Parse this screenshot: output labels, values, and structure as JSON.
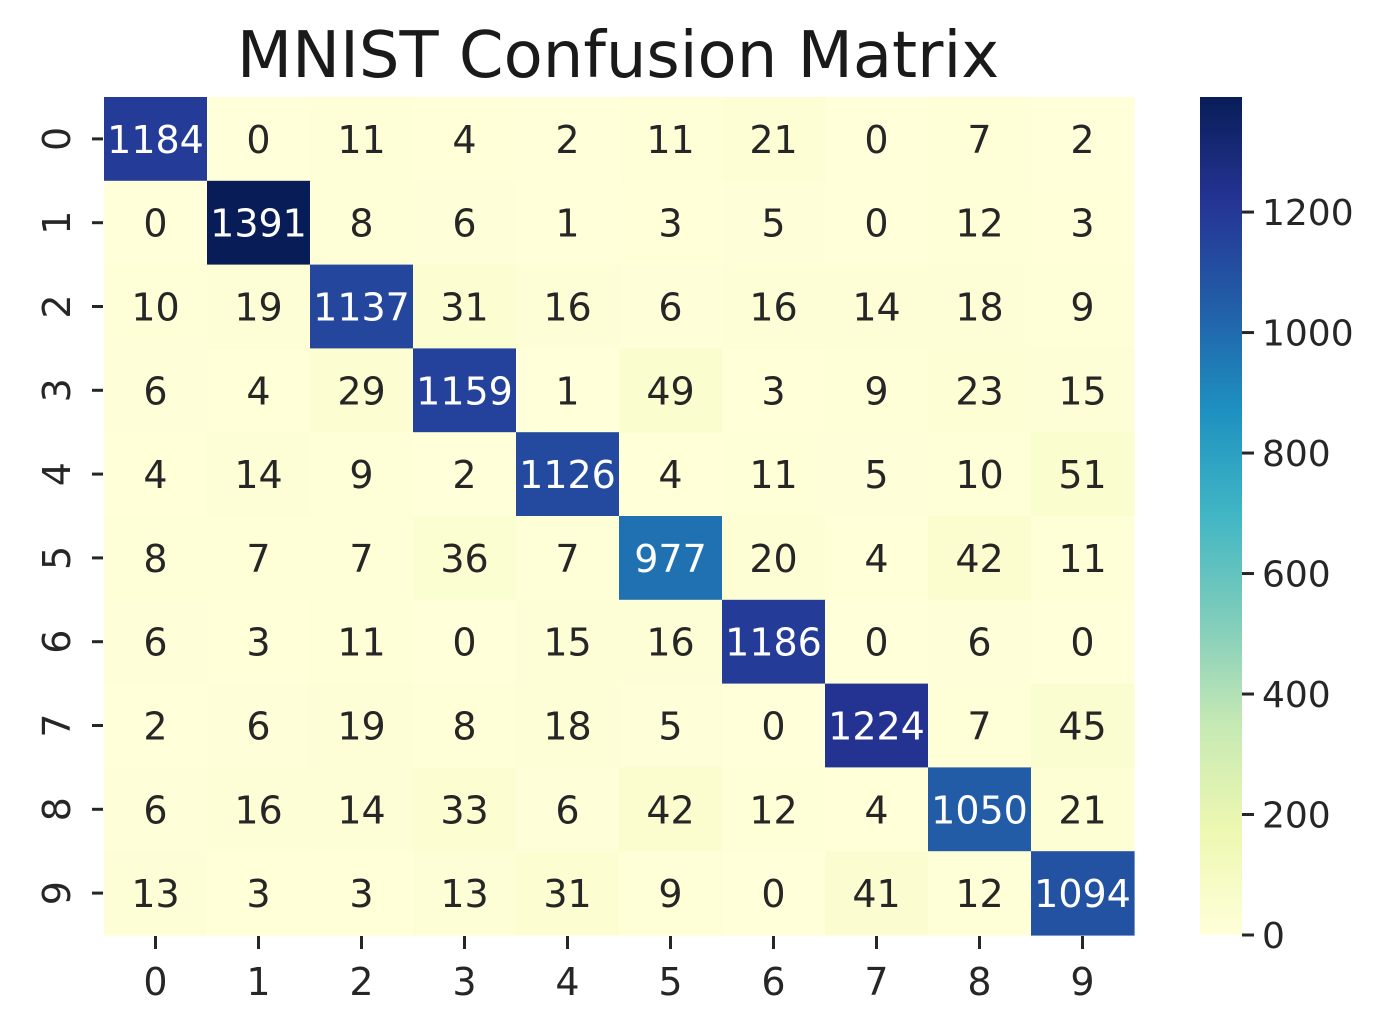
{
  "chart_data": {
    "type": "heatmap",
    "title": "MNIST Confusion Matrix",
    "xlabel": "",
    "ylabel": "",
    "x_categories": [
      "0",
      "1",
      "2",
      "3",
      "4",
      "5",
      "6",
      "7",
      "8",
      "9"
    ],
    "y_categories": [
      "0",
      "1",
      "2",
      "3",
      "4",
      "5",
      "6",
      "7",
      "8",
      "9"
    ],
    "values": [
      [
        1184,
        0,
        11,
        4,
        2,
        11,
        21,
        0,
        7,
        2
      ],
      [
        0,
        1391,
        8,
        6,
        1,
        3,
        5,
        0,
        12,
        3
      ],
      [
        10,
        19,
        1137,
        31,
        16,
        6,
        16,
        14,
        18,
        9
      ],
      [
        6,
        4,
        29,
        1159,
        1,
        49,
        3,
        9,
        23,
        15
      ],
      [
        4,
        14,
        9,
        2,
        1126,
        4,
        11,
        5,
        10,
        51
      ],
      [
        8,
        7,
        7,
        36,
        7,
        977,
        20,
        4,
        42,
        11
      ],
      [
        6,
        3,
        11,
        0,
        15,
        16,
        1186,
        0,
        6,
        0
      ],
      [
        2,
        6,
        19,
        8,
        18,
        5,
        0,
        1224,
        7,
        45
      ],
      [
        6,
        16,
        14,
        33,
        6,
        42,
        12,
        4,
        1050,
        21
      ],
      [
        13,
        3,
        3,
        13,
        31,
        9,
        0,
        41,
        12,
        1094
      ]
    ],
    "colormap": "YlGnBu",
    "colorbar": {
      "range": [
        0,
        1391
      ],
      "ticks": [
        0,
        200,
        400,
        600,
        800,
        1000,
        1200
      ],
      "tick_labels": [
        "0",
        "200",
        "400",
        "600",
        "800",
        "1000",
        "1200"
      ],
      "placement": "right"
    },
    "annotated": true,
    "grid": false
  }
}
